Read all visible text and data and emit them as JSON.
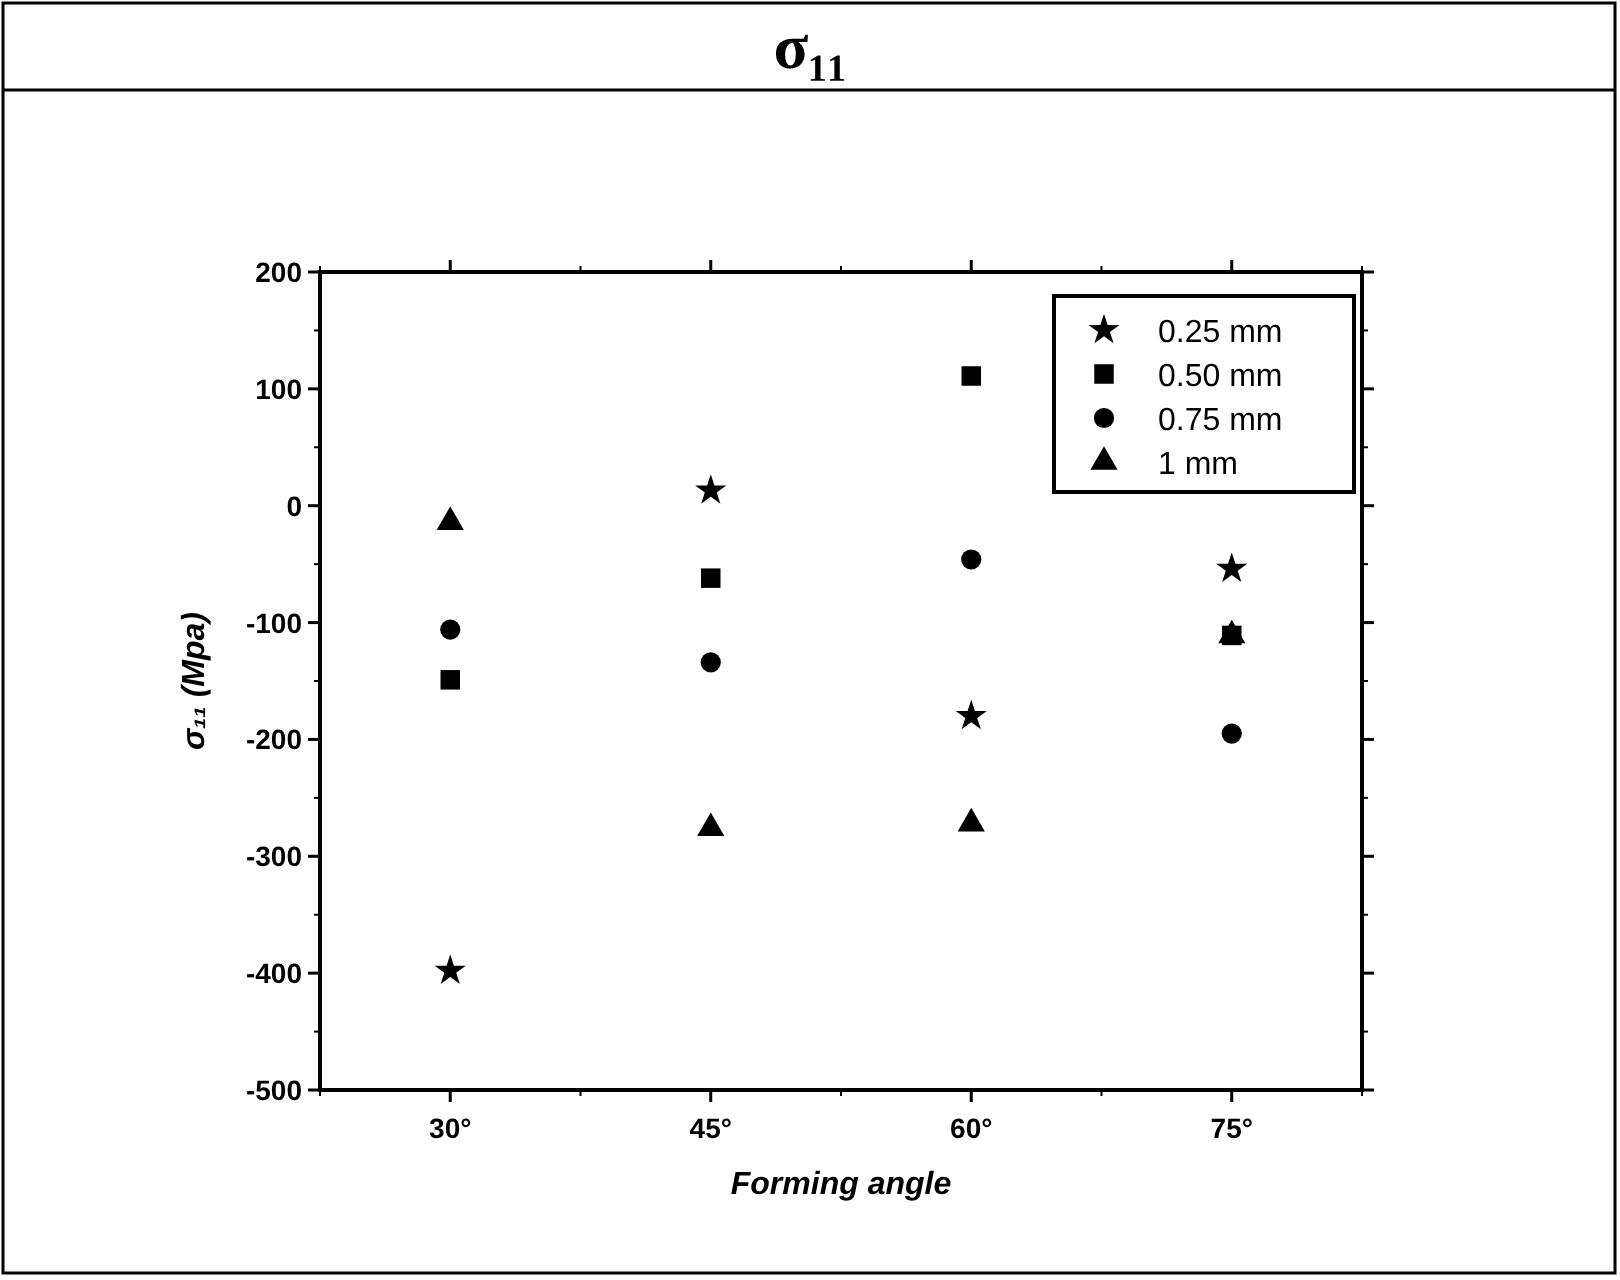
{
  "chart_data": {
    "type": "scatter",
    "title": "σ₁₁",
    "xlabel": "Forming angle",
    "ylabel": "σ₁₁ (Mpa)",
    "categories": [
      "30°",
      "45°",
      "60°",
      "75°"
    ],
    "ylim": [
      -500,
      200
    ],
    "yticks": [
      -500,
      -400,
      -300,
      -200,
      -100,
      0,
      100,
      200
    ],
    "grid": false,
    "legend": "top right",
    "series": [
      {
        "name": "0.25 mm",
        "color": "#000000",
        "marker": "star",
        "values": [
          -398,
          13,
          -180,
          -54
        ]
      },
      {
        "name": "0.50 mm",
        "color": "#000000",
        "marker": "square",
        "values": [
          -149,
          -62,
          111,
          -111
        ]
      },
      {
        "name": "0.75 mm",
        "color": "#000000",
        "marker": "circle",
        "values": [
          -106,
          -134,
          -46,
          -195
        ]
      },
      {
        "name": "1 mm",
        "color": "#000000",
        "marker": "triangle",
        "values": [
          -14,
          -276,
          -272,
          -111
        ]
      }
    ]
  }
}
